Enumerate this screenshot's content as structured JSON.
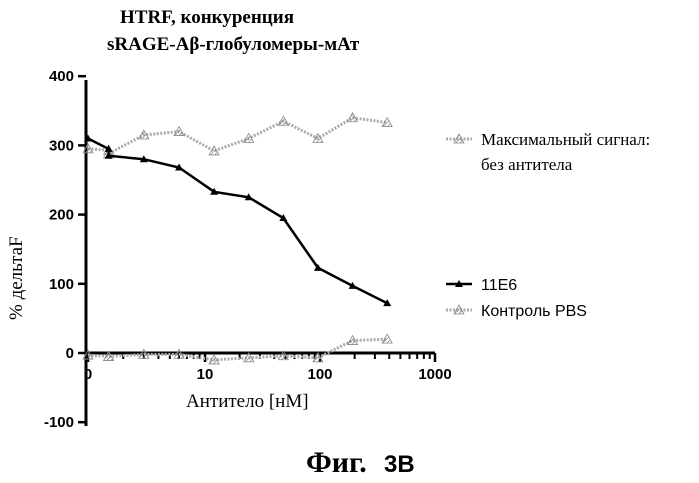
{
  "chart_data": {
    "type": "line",
    "title_line1": "HTRF, конкуренция",
    "title_line2": "sRAGE-Aβ-глобуломеры-мАт",
    "xlabel": "Антитело [нМ]",
    "ylabel": "% дельтаF",
    "x_scale": "log",
    "x_ticks": [
      {
        "value": 0,
        "label": "0"
      },
      {
        "value": 10,
        "label": "10"
      },
      {
        "value": 100,
        "label": "100"
      },
      {
        "value": 1000,
        "label": "1000"
      }
    ],
    "y_ticks": [
      -100,
      0,
      100,
      200,
      300,
      400
    ],
    "ylim": [
      -100,
      400
    ],
    "legend_placement": "right",
    "series": [
      {
        "name_line1": "Максимальный сигнал:",
        "name_line2": "без антитела",
        "color": "#9a9a9a",
        "marker": "hatched-triangle",
        "x": [
          0,
          0.5,
          1.5,
          3,
          6,
          12,
          24,
          48,
          96,
          192,
          384
        ],
        "y": [
          295,
          293,
          288,
          315,
          320,
          292,
          310,
          335,
          310,
          340,
          333
        ]
      },
      {
        "name": "11E6",
        "color": "#000000",
        "marker": "triangle",
        "x": [
          0,
          0.5,
          1.5,
          3,
          6,
          12,
          24,
          48,
          96,
          192,
          384
        ],
        "y": [
          310,
          295,
          285,
          280,
          268,
          233,
          225,
          195,
          123,
          97,
          72
        ]
      },
      {
        "name": "Контроль PBS",
        "color": "#9a9a9a",
        "marker": "hatched-triangle",
        "x": [
          0,
          0.5,
          1.5,
          3,
          6,
          12,
          24,
          48,
          96,
          192,
          384
        ],
        "y": [
          -3,
          -5,
          -5,
          -2,
          -2,
          -10,
          -7,
          -4,
          -7,
          18,
          20
        ]
      }
    ]
  },
  "figure_caption": {
    "main": "Фиг.",
    "suffix": "3B"
  }
}
